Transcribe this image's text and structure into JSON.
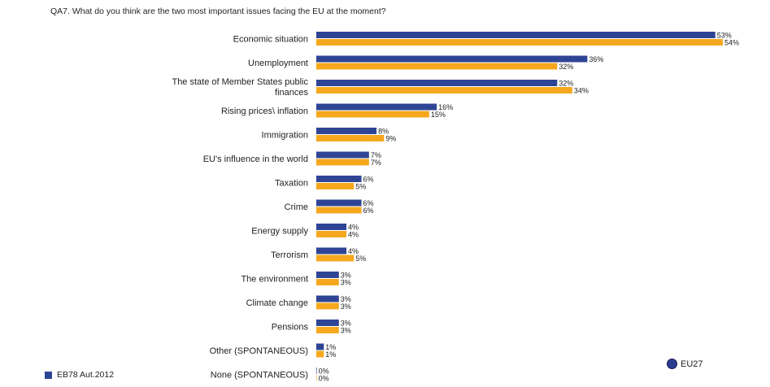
{
  "question": "QA7. What do you think are the two most important issues facing the EU at the moment?",
  "legend": {
    "survey_label": "EB78 Aut.2012",
    "region_label": "EU27"
  },
  "colors": {
    "series_1": "#2e4494",
    "series_2": "#f5a81d",
    "eu_marker": "#2c3d8f"
  },
  "chart_data": {
    "type": "bar",
    "orientation": "horizontal",
    "value_format": "{v}%",
    "xlim": [
      0,
      54
    ],
    "categories": [
      [
        "Economic situation"
      ],
      [
        "Unemployment"
      ],
      [
        "The state of Member States public",
        "finances"
      ],
      [
        "Rising prices\\ inflation"
      ],
      [
        "Immigration"
      ],
      [
        "EU's influence in the world"
      ],
      [
        "Taxation"
      ],
      [
        "Crime"
      ],
      [
        "Energy supply"
      ],
      [
        "Terrorism"
      ],
      [
        "The environment"
      ],
      [
        "Climate change"
      ],
      [
        "Pensions"
      ],
      [
        "Other (SPONTANEOUS)"
      ],
      [
        "None (SPONTANEOUS)"
      ]
    ],
    "series": [
      {
        "values": [
          53,
          36,
          32,
          16,
          8,
          7,
          6,
          6,
          4,
          4,
          3,
          3,
          3,
          1,
          0
        ]
      },
      {
        "values": [
          54,
          32,
          34,
          15,
          9,
          7,
          5,
          6,
          4,
          5,
          3,
          3,
          3,
          1,
          0
        ]
      }
    ]
  }
}
